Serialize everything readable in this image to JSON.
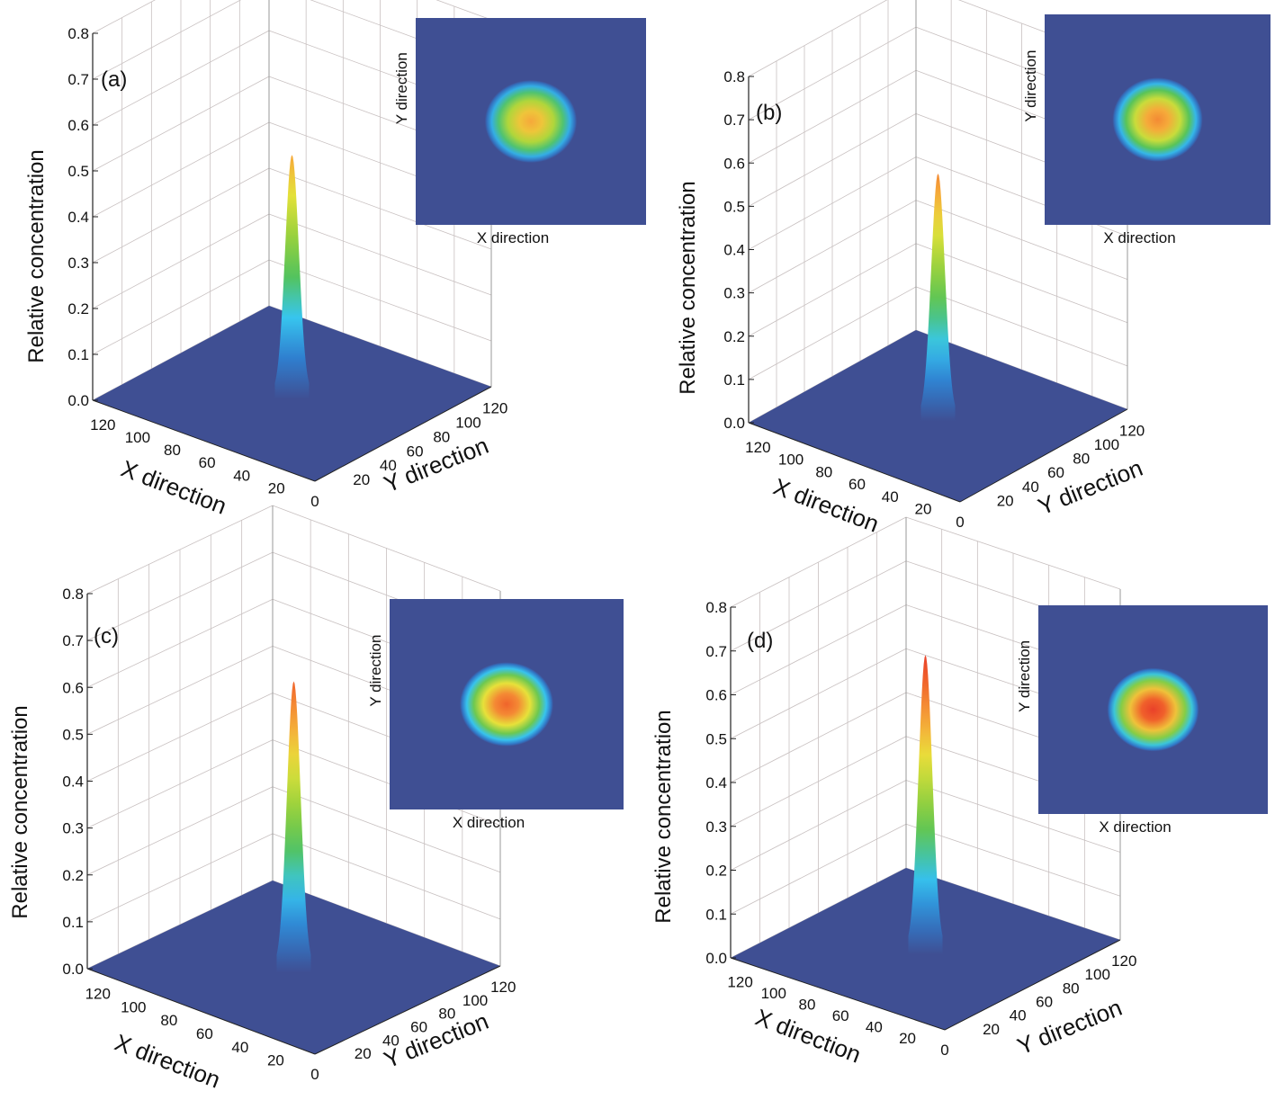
{
  "colors": {
    "floor": "#3f4f93",
    "inset_background": "#3f4f93",
    "grid": "#c8c0c0",
    "axis": "#222222",
    "colormap": [
      "#3f4f93",
      "#2f7fd0",
      "#37c6ef",
      "#54c35a",
      "#9bd23c",
      "#e7e23a",
      "#f7a43a",
      "#f0622b",
      "#e5302a"
    ]
  },
  "chart_data": [
    {
      "panel": "(a)",
      "type": "surface3d",
      "peak_value": 0.52,
      "z_label": "Relative concentration",
      "x_label": "X direction",
      "y_label": "Y direction",
      "z_ticks": [
        "0.0",
        "0.1",
        "0.2",
        "0.3",
        "0.4",
        "0.5",
        "0.6",
        "0.7",
        "0.8"
      ],
      "x_ticks": [
        "120",
        "100",
        "80",
        "60",
        "40",
        "20"
      ],
      "y_ticks": [
        "0",
        "20",
        "40",
        "60",
        "80",
        "100",
        "120"
      ],
      "zlim": [
        0,
        0.8
      ],
      "inset": {
        "type": "heatmap",
        "x_label": "X direction",
        "y_label": "Y direction"
      }
    },
    {
      "panel": "(b)",
      "type": "surface3d",
      "peak_value": 0.56,
      "z_label": "Relative concentration",
      "x_label": "X direction",
      "y_label": "Y direction",
      "z_ticks": [
        "0.0",
        "0.1",
        "0.2",
        "0.3",
        "0.4",
        "0.5",
        "0.6",
        "0.7",
        "0.8"
      ],
      "x_ticks": [
        "120",
        "100",
        "80",
        "60",
        "40",
        "20"
      ],
      "y_ticks": [
        "0",
        "20",
        "40",
        "60",
        "80",
        "100",
        "120"
      ],
      "zlim": [
        0,
        0.8
      ],
      "inset": {
        "type": "heatmap",
        "x_label": "X direction",
        "y_label": "Y direction"
      }
    },
    {
      "panel": "(c)",
      "type": "surface3d",
      "peak_value": 0.61,
      "z_label": "Relative concentration",
      "x_label": "X direction",
      "y_label": "Y direction",
      "z_ticks": [
        "0.0",
        "0.1",
        "0.2",
        "0.3",
        "0.4",
        "0.5",
        "0.6",
        "0.7",
        "0.8"
      ],
      "x_ticks": [
        "120",
        "100",
        "80",
        "60",
        "40",
        "20"
      ],
      "y_ticks": [
        "0",
        "20",
        "40",
        "60",
        "80",
        "100",
        "120"
      ],
      "zlim": [
        0,
        0.8
      ],
      "inset": {
        "type": "heatmap",
        "x_label": "X direction",
        "y_label": "Y direction"
      }
    },
    {
      "panel": "(d)",
      "type": "surface3d",
      "peak_value": 0.67,
      "z_label": "Relative concentration",
      "x_label": "X direction",
      "y_label": "Y direction",
      "z_ticks": [
        "0.0",
        "0.1",
        "0.2",
        "0.3",
        "0.4",
        "0.5",
        "0.6",
        "0.7",
        "0.8"
      ],
      "x_ticks": [
        "120",
        "100",
        "80",
        "60",
        "40",
        "20"
      ],
      "y_ticks": [
        "0",
        "20",
        "40",
        "60",
        "80",
        "100",
        "120"
      ],
      "zlim": [
        0,
        0.8
      ],
      "inset": {
        "type": "heatmap",
        "x_label": "X direction",
        "y_label": "Y direction"
      }
    }
  ]
}
